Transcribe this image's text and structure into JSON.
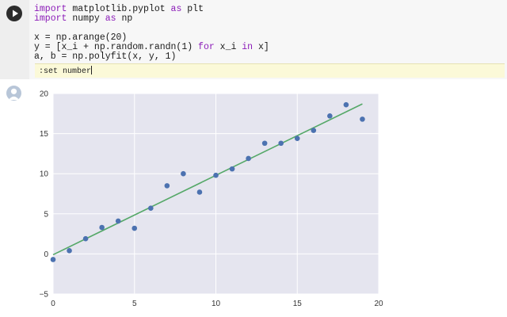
{
  "code_cell": {
    "run_icon": "play-icon",
    "lines": [
      [
        {
          "t": "import",
          "kw": true
        },
        {
          "t": " matplotlib.pyplot "
        },
        {
          "t": "as",
          "kw": true
        },
        {
          "t": " plt"
        }
      ],
      [
        {
          "t": "import",
          "kw": true
        },
        {
          "t": " numpy "
        },
        {
          "t": "as",
          "kw": true
        },
        {
          "t": " np"
        }
      ],
      [
        {
          "t": ""
        }
      ],
      [
        {
          "t": "x = np.arange(20)"
        }
      ],
      [
        {
          "t": "y = [x_i + np.random.randn(1) "
        },
        {
          "t": "for",
          "kw": true
        },
        {
          "t": " x_i "
        },
        {
          "t": "in",
          "kw": true
        },
        {
          "t": " x]"
        }
      ],
      [
        {
          "t": "a, b = np.polyfit(x, y, 1)"
        }
      ]
    ],
    "vim_command": ":set number"
  },
  "output_cell": {
    "avatar_icon": "user-avatar-icon"
  },
  "colors": {
    "keyword": "#8b1bb8",
    "plot_background": "#e5e5ef",
    "points": "#4c72b0",
    "fit_line": "#55a868"
  },
  "chart_data": {
    "type": "scatter",
    "title": "",
    "xlabel": "",
    "ylabel": "",
    "xlim": [
      0,
      20
    ],
    "ylim": [
      -5,
      20
    ],
    "xticks": [
      "0",
      "5",
      "10",
      "15",
      "20"
    ],
    "yticks": [
      "−5",
      "0",
      "5",
      "10",
      "15",
      "20"
    ],
    "xtick_values": [
      0,
      5,
      10,
      15,
      20
    ],
    "ytick_values": [
      -5,
      0,
      5,
      10,
      15,
      20
    ],
    "grid": true,
    "series": [
      {
        "kind": "scatter",
        "x": [
          0,
          1,
          2,
          3,
          4,
          5,
          6,
          7,
          8,
          9,
          10,
          11,
          12,
          13,
          14,
          15,
          16,
          17,
          18,
          19
        ],
        "y": [
          -0.7,
          0.4,
          1.9,
          3.3,
          4.1,
          3.2,
          5.7,
          8.5,
          10.0,
          7.7,
          9.8,
          10.6,
          11.9,
          13.8,
          13.8,
          14.4,
          15.4,
          17.2,
          18.6,
          16.8
        ]
      },
      {
        "kind": "line",
        "x": [
          0,
          19
        ],
        "y": [
          -0.1,
          18.7
        ]
      }
    ]
  }
}
